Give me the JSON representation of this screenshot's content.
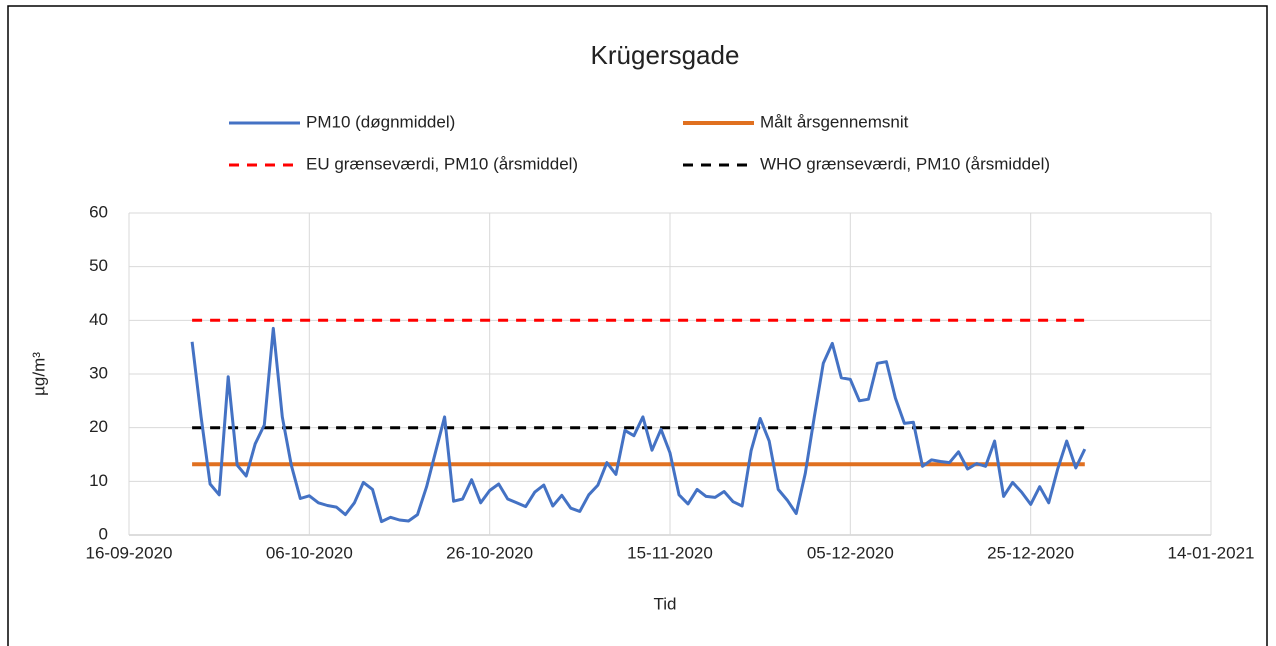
{
  "chart_data": {
    "type": "line",
    "title": "Krügersgade",
    "xlabel": "Tid",
    "ylabel": "µg/m³",
    "xlim": [
      "16-09-2020",
      "14-01-2021"
    ],
    "xticks": [
      "16-09-2020",
      "06-10-2020",
      "26-10-2020",
      "15-11-2020",
      "05-12-2020",
      "25-12-2020",
      "14-01-2021"
    ],
    "ylim": [
      0,
      60
    ],
    "yticks": [
      0,
      10,
      20,
      30,
      40,
      50,
      60
    ],
    "grid": true,
    "series": [
      {
        "name": "PM10 (døgnmiddel)",
        "color": "#4472c4",
        "style": "solid",
        "x": [
          "23-09-2020",
          "24-09-2020",
          "25-09-2020",
          "26-09-2020",
          "27-09-2020",
          "28-09-2020",
          "29-09-2020",
          "30-09-2020",
          "01-10-2020",
          "02-10-2020",
          "03-10-2020",
          "04-10-2020",
          "05-10-2020",
          "06-10-2020",
          "07-10-2020",
          "08-10-2020",
          "09-10-2020",
          "10-10-2020",
          "11-10-2020",
          "12-10-2020",
          "13-10-2020",
          "14-10-2020",
          "15-10-2020",
          "16-10-2020",
          "17-10-2020",
          "18-10-2020",
          "19-10-2020",
          "20-10-2020",
          "21-10-2020",
          "22-10-2020",
          "23-10-2020",
          "24-10-2020",
          "25-10-2020",
          "26-10-2020",
          "27-10-2020",
          "28-10-2020",
          "29-10-2020",
          "30-10-2020",
          "31-10-2020",
          "01-11-2020",
          "02-11-2020",
          "03-11-2020",
          "04-11-2020",
          "05-11-2020",
          "06-11-2020",
          "07-11-2020",
          "08-11-2020",
          "09-11-2020",
          "10-11-2020",
          "11-11-2020",
          "12-11-2020",
          "13-11-2020",
          "14-11-2020",
          "15-11-2020",
          "16-11-2020",
          "17-11-2020",
          "18-11-2020",
          "19-11-2020",
          "20-11-2020",
          "21-11-2020",
          "22-11-2020",
          "23-11-2020",
          "24-11-2020",
          "25-11-2020",
          "26-11-2020",
          "27-11-2020",
          "28-11-2020",
          "29-11-2020",
          "30-11-2020",
          "01-12-2020",
          "02-12-2020",
          "03-12-2020",
          "04-12-2020",
          "05-12-2020",
          "06-12-2020",
          "07-12-2020",
          "08-12-2020",
          "09-12-2020",
          "10-12-2020",
          "11-12-2020",
          "12-12-2020",
          "13-12-2020",
          "14-12-2020",
          "15-12-2020",
          "16-12-2020",
          "17-12-2020",
          "18-12-2020",
          "19-12-2020",
          "20-12-2020",
          "21-12-2020",
          "22-12-2020",
          "23-12-2020",
          "24-12-2020",
          "25-12-2020",
          "26-12-2020",
          "27-12-2020",
          "28-12-2020",
          "29-12-2020",
          "30-12-2020",
          "31-12-2020"
        ],
        "values": [
          36,
          22,
          9.5,
          7.5,
          29.5,
          13,
          11,
          17,
          20.5,
          38.5,
          22,
          13,
          6.8,
          7.3,
          6,
          5.5,
          5.2,
          3.8,
          6,
          9.8,
          8.5,
          2.5,
          3.3,
          2.8,
          2.6,
          3.8,
          9,
          15.5,
          22,
          6.3,
          6.7,
          10.3,
          6,
          8.3,
          9.5,
          6.7,
          6,
          5.3,
          8,
          9.3,
          5.4,
          7.4,
          5,
          4.4,
          7.5,
          9.3,
          13.5,
          11.3,
          19.5,
          18.5,
          22,
          15.8,
          19.7,
          15.3,
          7.5,
          5.8,
          8.5,
          7.2,
          7,
          8.1,
          6.2,
          5.4,
          15.7,
          21.7,
          17.5,
          8.5,
          6.5,
          4,
          11.5,
          22,
          32,
          35.7,
          29.3,
          29,
          25,
          25.3,
          32,
          32.3,
          25.5,
          20.8,
          21,
          12.8,
          14,
          13.7,
          13.5,
          15.5,
          12.3,
          13.3,
          12.8,
          17.5,
          7.2,
          9.8,
          8,
          5.7,
          9,
          6,
          12.3,
          17.5,
          12.5,
          16
        ]
      },
      {
        "name": "Målt årsgennemsnit",
        "color": "#e07020",
        "style": "solid",
        "x": [
          "23-09-2020",
          "31-12-2020"
        ],
        "values": [
          13.2,
          13.2
        ]
      },
      {
        "name": "EU grænseværdi, PM10 (årsmiddel)",
        "color": "#ff0000",
        "style": "dashed",
        "x": [
          "23-09-2020",
          "31-12-2020"
        ],
        "values": [
          40,
          40
        ]
      },
      {
        "name": "WHO grænseværdi, PM10 (årsmiddel)",
        "color": "#000000",
        "style": "dashed",
        "x": [
          "23-09-2020",
          "31-12-2020"
        ],
        "values": [
          20,
          20
        ]
      }
    ]
  }
}
